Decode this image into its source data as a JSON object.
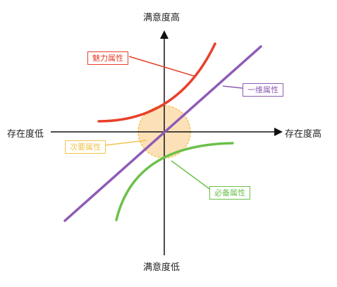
{
  "axes": {
    "y_top": "满意度高",
    "y_bottom": "满意度低",
    "x_left": "存在度低",
    "x_right": "存在度高"
  },
  "attributes": [
    {
      "key": "attractive",
      "label": "魅力属性",
      "color": "#e8402a"
    },
    {
      "key": "one_dimensional",
      "label": "一维属性",
      "color": "#8e5bb5"
    },
    {
      "key": "indifferent",
      "label": "次要属性",
      "color": "#f2c44e"
    },
    {
      "key": "must_be",
      "label": "必备属性",
      "color": "#6cc04a"
    }
  ],
  "colors": {
    "axis": "#111111",
    "indifferent_fill": "#fbd9a6"
  }
}
